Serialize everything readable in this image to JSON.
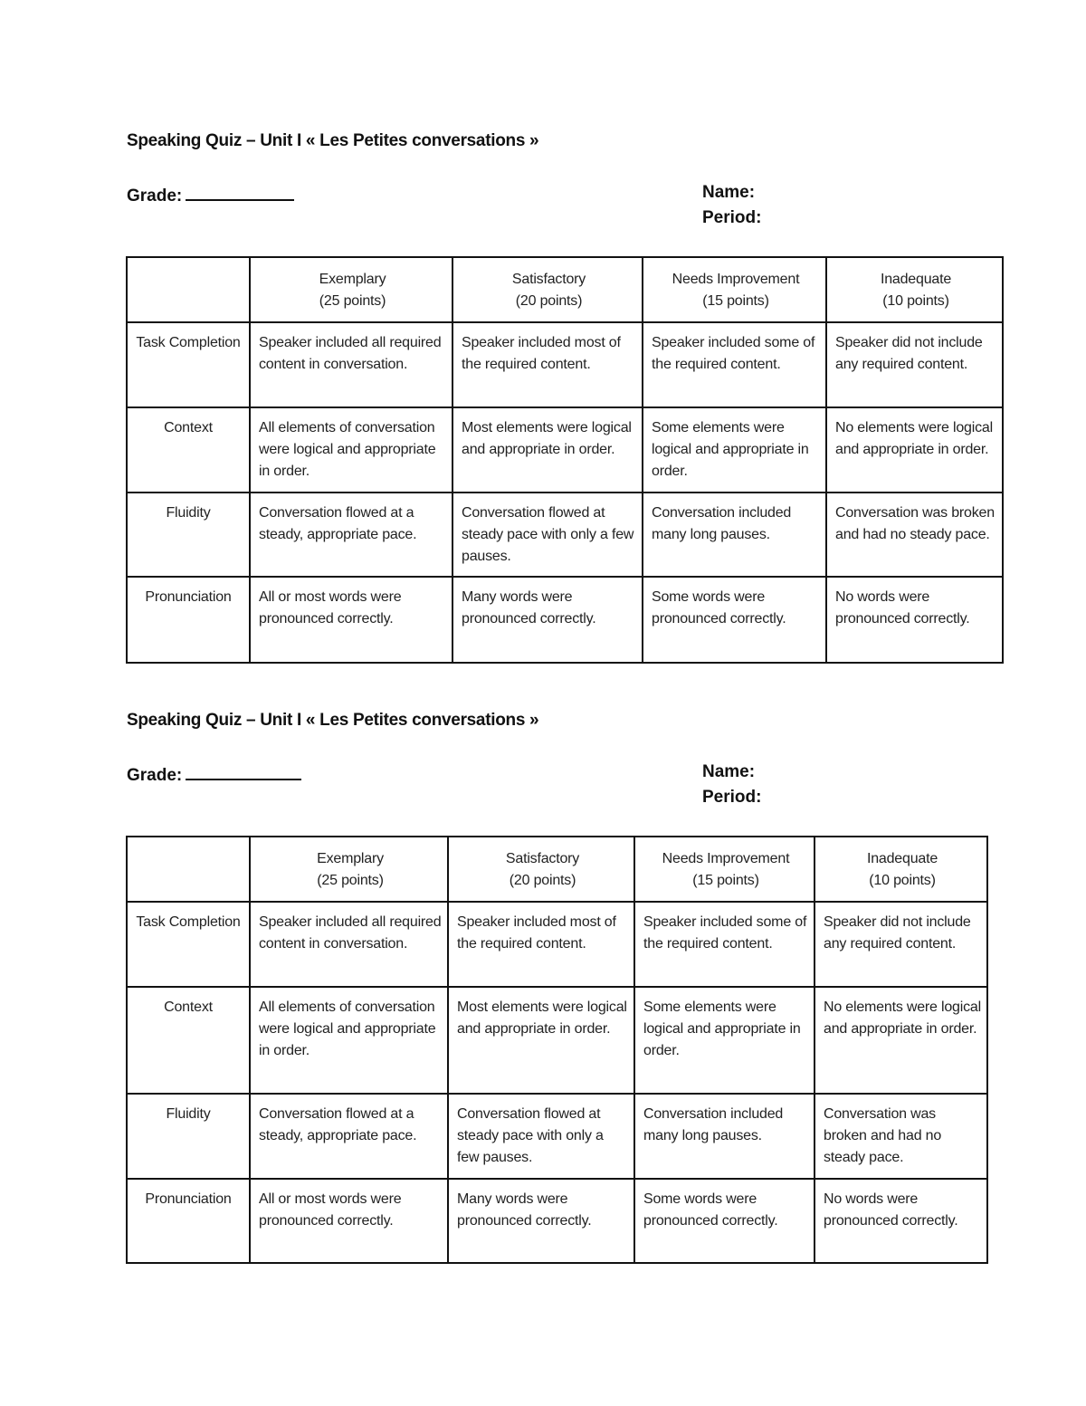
{
  "quizzes": [
    {
      "title": "Speaking Quiz – Unit I « Les Petites conversations »",
      "grade_label": "Grade:",
      "name_label": "Name:",
      "period_label": "Period:",
      "columns": [
        {
          "level": "",
          "points": ""
        },
        {
          "level": "Exemplary",
          "points": "(25 points)"
        },
        {
          "level": "Satisfactory",
          "points": "(20 points)"
        },
        {
          "level": "Needs Improvement",
          "points": "(15 points)"
        },
        {
          "level": "Inadequate",
          "points": "(10 points)"
        }
      ],
      "rows": [
        {
          "criterion": "Task Completion",
          "cells": [
            "Speaker included all required content in conversation.",
            "Speaker included most of the required content.",
            "Speaker included some of the required content.",
            "Speaker did not include any required content."
          ]
        },
        {
          "criterion": "Context",
          "cells": [
            "All elements of conversation were logical and appropriate in order.",
            "Most elements were logical and appropriate in order.",
            "Some elements were logical and appropriate in order.",
            "No elements were logical and appropriate in order."
          ]
        },
        {
          "criterion": "Fluidity",
          "cells": [
            "Conversation flowed at a steady, appropriate pace.",
            "Conversation flowed at steady pace with only a few pauses.",
            "Conversation included many long pauses.",
            "Conversation was broken and had no steady pace."
          ]
        },
        {
          "criterion": "Pronunciation",
          "cells": [
            "All or most words were pronounced correctly.",
            "Many words were pronounced correctly.",
            "Some words were pronounced correctly.",
            "No words were pronounced correctly."
          ]
        }
      ]
    },
    {
      "title": "Speaking Quiz – Unit I « Les Petites conversations »",
      "grade_label": "Grade:",
      "name_label": "Name:",
      "period_label": "Period:",
      "columns": [
        {
          "level": "",
          "points": ""
        },
        {
          "level": "Exemplary",
          "points": "(25 points)"
        },
        {
          "level": "Satisfactory",
          "points": "(20 points)"
        },
        {
          "level": "Needs Improvement",
          "points": "(15 points)"
        },
        {
          "level": "Inadequate",
          "points": "(10 points)"
        }
      ],
      "rows": [
        {
          "criterion": "Task Completion",
          "cells": [
            "Speaker included all required content in conversation.",
            "Speaker included most of the required content.",
            "Speaker included some of the required content.",
            "Speaker did not include any required content."
          ]
        },
        {
          "criterion": "Context",
          "cells": [
            "All elements of conversation were logical and appropriate in order.",
            "Most elements were logical and appropriate in order.",
            "Some elements were logical and appropriate in order.",
            "No elements were logical and appropriate in order."
          ]
        },
        {
          "criterion": "Fluidity",
          "cells": [
            "Conversation flowed at a steady, appropriate pace.",
            "Conversation flowed at steady pace with only a few pauses.",
            "Conversation included many long pauses.",
            "Conversation was broken and had no steady pace."
          ]
        },
        {
          "criterion": "Pronunciation",
          "cells": [
            "All or most words were pronounced correctly.",
            "Many words were pronounced correctly.",
            "Some words were pronounced correctly.",
            "No words were pronounced correctly."
          ]
        }
      ]
    }
  ]
}
